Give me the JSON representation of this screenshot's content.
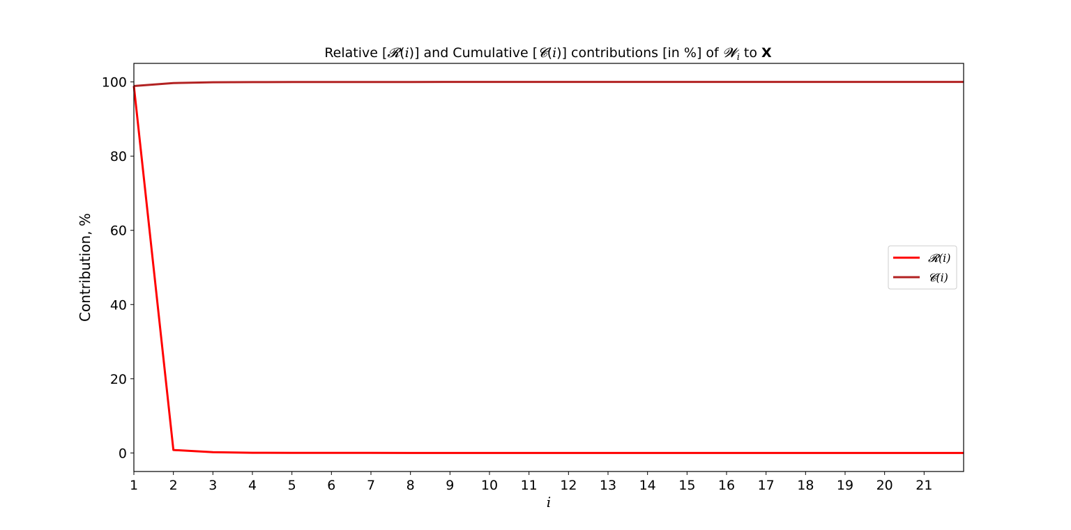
{
  "chart_data": {
    "type": "line",
    "title": {
      "prefix": "Relative [",
      "r_sym": "𝓡",
      "paren_open": "(",
      "i": "i",
      "paren_close": ")",
      "mid": "] and Cumulative [",
      "c_sym": "𝓒",
      "after": "] contributions [in %] of ",
      "w_sym": "𝓦",
      "w_sub": "i",
      "to": " to ",
      "x_bold": "X"
    },
    "xlabel": "i",
    "ylabel": "Contribution, %",
    "xlim": [
      1,
      22
    ],
    "ylim": [
      -5,
      105
    ],
    "xticks": [
      1,
      2,
      3,
      4,
      5,
      6,
      7,
      8,
      9,
      10,
      11,
      12,
      13,
      14,
      15,
      16,
      17,
      18,
      19,
      20,
      21
    ],
    "yticks": [
      0,
      20,
      40,
      60,
      80,
      100
    ],
    "grid": false,
    "legend_position": "center-right",
    "x": [
      1,
      2,
      3,
      4,
      5,
      6,
      7,
      8,
      9,
      10,
      11,
      12,
      13,
      14,
      15,
      16,
      17,
      18,
      19,
      20,
      21,
      22
    ],
    "series": [
      {
        "name": "𝓡(i)",
        "color": "#ff0000",
        "values": [
          98.9,
          0.8,
          0.2,
          0.05,
          0.03,
          0.01,
          0.01,
          0.005,
          0.003,
          0.002,
          0.001,
          0.001,
          0.001,
          0.0,
          0.0,
          0.0,
          0.0,
          0.0,
          0.0,
          0.0,
          0.0,
          0.0
        ]
      },
      {
        "name": "𝓒(i)",
        "color": "#b22222",
        "values": [
          98.9,
          99.7,
          99.9,
          99.95,
          99.97,
          99.98,
          99.99,
          99.99,
          99.995,
          99.997,
          99.998,
          99.999,
          99.999,
          100,
          100,
          100,
          100,
          100,
          100,
          100,
          100,
          100
        ]
      }
    ]
  }
}
